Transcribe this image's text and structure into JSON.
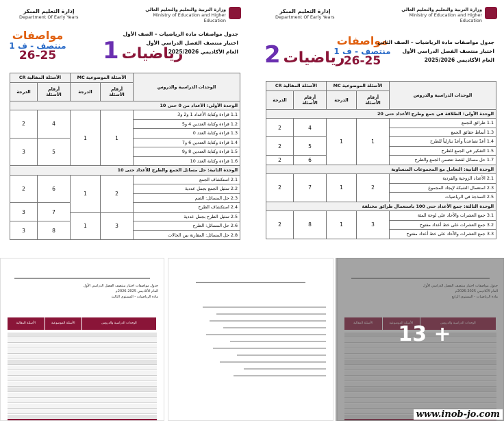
{
  "pages": [
    {
      "header": {
        "dept_ar": "إدارة التعليم المبكر",
        "dept_en": "Department Of Early Years",
        "ministry_ar": "وزارة التربية والتعليم والتعليم العالي",
        "ministry_en": "Ministry of Education and Higher Education"
      },
      "badge": {
        "title": "مواصفات",
        "subtitle": "منتصف - ف 1",
        "year": "26-25"
      },
      "subject": "رياضيات",
      "grade": "1",
      "heading": [
        "جدول مواصفات مادة الرياضيات – الصف الأول",
        "اختبار منتصف الفصل الدراسي الأول",
        "العام الأكاديمي 2025/2026"
      ],
      "table": {
        "units": "الوحدات الدراسية والدروس",
        "mc": "الأسئلة الموضوعية MC",
        "cr": "الأسئلة المقالية CR",
        "numbers": "أرقام الأسئلة",
        "degree": "الدرجة",
        "sections": [
          {
            "title": "الوحدة الأولى: الأعداد من 0 حتى 10",
            "lessons": [
              "1.1  قراءة وكتابة الأعداد 1 و2 و3",
              "1.2  قراءة وكتابة العددين 4 و5",
              "1.3  قراءة وكتابة العدد 0",
              "1.4  قراءة وكتابة العددين 6 و7",
              "1.5  قراءة وكتابة العددين 8 و9",
              "1.6  قراءة وكتابة العدد 10"
            ],
            "mc": [
              {
                "number": "1",
                "degree": "1"
              }
            ],
            "cr": [
              {
                "number": "4",
                "degree": "2"
              },
              {
                "number": "5",
                "degree": "3"
              }
            ]
          },
          {
            "title": "الوحدة الثانية: حل مسائل الجمع والطرح للأعداد حتى 10",
            "lessons": [
              "2.1  استكشاف الجمع",
              "2.2  تمثيل الجمع بجمل عددية",
              "2.3  حل المسائل: الضم",
              "2.4  استكشاف الطرح",
              "2.5  تمثيل الطرح بجمل عددية",
              "2.6  حل المسائل: الطرح",
              "2.8  حل المسائل: المقارنة بين الحالات"
            ],
            "mc": [
              {
                "number": "2",
                "degree": "1"
              },
              {
                "number": "3",
                "degree": "1"
              }
            ],
            "cr": [
              {
                "number": "6",
                "degree": "2"
              },
              {
                "number": "7",
                "degree": "3"
              },
              {
                "number": "8",
                "degree": "3"
              }
            ]
          }
        ]
      }
    },
    {
      "header": {
        "dept_ar": "إدارة التعليم المبكر",
        "dept_en": "Department Of Early Years",
        "ministry_ar": "وزارة التربية والتعليم والتعليم العالي",
        "ministry_en": "Ministry of Education and Higher Education"
      },
      "badge": {
        "title": "مواصفات",
        "subtitle": "منتصف - ف 1",
        "year": "26-25"
      },
      "subject": "رياضيات",
      "grade": "2",
      "heading": [
        "جدول مواصفات مادة الرياضيات – الصف الثاني",
        "اختبار منتصف الفصل الدراسي الأول",
        "العام الأكاديمي 2025/2026"
      ],
      "table": {
        "units": "الوحدات الدراسية والدروس",
        "mc": "الأسئلة الموضوعية MC",
        "cr": "الأسئلة المقالية CR",
        "numbers": "أرقام الأسئلة",
        "degree": "الدرجة",
        "sections": [
          {
            "title": "الوحدة الأولى: الطلاقة في جمع وطرح الأعداد حتى 20",
            "lessons": [
              "1.1  طرائق للجمع",
              "1.3  أنماط حقائق الجمع",
              "1.4  أعدّ تصاعدياً وأعدّ تنازلياً للطرح",
              "1.5  التفكير في الجمع للطرح",
              "1.7  حل مسائل لقصة تتضمن الجمع والطرح"
            ],
            "mc": [
              {
                "number": "1",
                "degree": "1"
              }
            ],
            "cr": [
              {
                "number": "4",
                "degree": "2"
              },
              {
                "number": "5",
                "degree": "2"
              },
              {
                "number": "6",
                "degree": "2"
              }
            ]
          },
          {
            "title": "الوحدة الثانية: التعامل مع المجموعات المتساوية",
            "lessons": [
              "2.1  الأعداد الزوجية والفردية",
              "2.3  استعمال الشبكة لإيجاد المجموع",
              "2.5  النمذجة في الرياضيات"
            ],
            "mc": [
              {
                "number": "2",
                "degree": "1"
              }
            ],
            "cr": [
              {
                "number": "7",
                "degree": "2"
              }
            ]
          },
          {
            "title": "الوحدة الثالثة: جمع الأعداد حتى 100 باستعمال طرائق مختلفة",
            "lessons": [
              "3.1  جمع العشرات والآحاد على لوحة المئة",
              "3.2  جمع العشرات على خط أعداد مفتوح",
              "3.3  جمع العشرات والآحاد على خط أعداد مفتوح"
            ],
            "mc": [
              {
                "number": "3",
                "degree": "1"
              }
            ],
            "cr": [
              {
                "number": "8",
                "degree": "2"
              }
            ]
          }
        ]
      }
    }
  ],
  "thumbnails": [
    {
      "heading": [
        "جدول مواصفات اختبار منتصف الفصل الدراسي الأول",
        "العام الأكاديمي 2025-2026م",
        "مادة الرياضيات - المستوى الثالث"
      ],
      "columns": [
        "الوحدات الدراسية والدروس",
        "الأسئلة الموضوعية",
        "الأسئلة المقالية"
      ]
    },
    {
      "heading": [
        "جدول مواصفات اختبار منتصف الفصل الدراسي الأول",
        "العام الأكاديمي 2025-2026م",
        "مادة الرياضيات - المستوى الرابع"
      ],
      "columns": [
        "الوحدات الدراسية والدروس",
        "الأسئلة الموضوعية",
        "الأسئلة المقالية"
      ]
    }
  ],
  "more_count": "13 +",
  "watermark": "www.inob-jo.com"
}
